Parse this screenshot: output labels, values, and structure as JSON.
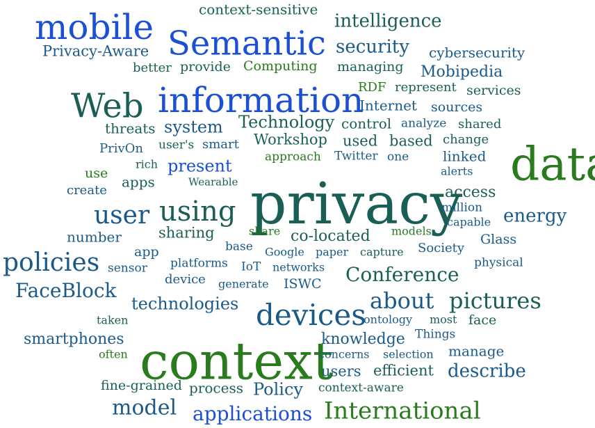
{
  "colors": {
    "blue": "#1a4fd6",
    "navy": "#1a5a8a",
    "teal": "#1a5f55",
    "green": "#2a7a1e"
  },
  "words": [
    {
      "text": "privacy",
      "tone": "teal"
    },
    {
      "text": "context",
      "tone": "green"
    },
    {
      "text": "data",
      "tone": "green"
    },
    {
      "text": "information",
      "tone": "blue"
    },
    {
      "text": "Semantic",
      "tone": "blue"
    },
    {
      "text": "mobile",
      "tone": "blue"
    },
    {
      "text": "Web",
      "tone": "teal"
    },
    {
      "text": "devices",
      "tone": "navy"
    },
    {
      "text": "using",
      "tone": "teal"
    },
    {
      "text": "International",
      "tone": "green"
    },
    {
      "text": "user",
      "tone": "navy"
    },
    {
      "text": "policies",
      "tone": "navy"
    },
    {
      "text": "pictures",
      "tone": "teal"
    },
    {
      "text": "about",
      "tone": "navy"
    },
    {
      "text": "Conference",
      "tone": "teal"
    },
    {
      "text": "FaceBlock",
      "tone": "navy"
    },
    {
      "text": "model",
      "tone": "navy"
    },
    {
      "text": "applications",
      "tone": "blue"
    },
    {
      "text": "intelligence",
      "tone": "teal"
    },
    {
      "text": "security",
      "tone": "navy"
    },
    {
      "text": "describe",
      "tone": "navy"
    },
    {
      "text": "energy",
      "tone": "navy"
    },
    {
      "text": "Policy",
      "tone": "navy"
    },
    {
      "text": "technologies",
      "tone": "navy"
    },
    {
      "text": "present",
      "tone": "blue"
    },
    {
      "text": "system",
      "tone": "navy"
    },
    {
      "text": "Technology",
      "tone": "teal"
    },
    {
      "text": "smartphones",
      "tone": "navy"
    },
    {
      "text": "knowledge",
      "tone": "navy"
    },
    {
      "text": "access",
      "tone": "teal"
    },
    {
      "text": "co-located",
      "tone": "teal"
    },
    {
      "text": "Mobipedia",
      "tone": "navy"
    },
    {
      "text": "Privacy-Aware",
      "tone": "navy"
    },
    {
      "text": "cybersecurity",
      "tone": "navy"
    },
    {
      "text": "context-sensitive",
      "tone": "teal"
    },
    {
      "text": "Workshop",
      "tone": "teal"
    },
    {
      "text": "used",
      "tone": "teal"
    },
    {
      "text": "based",
      "tone": "teal"
    },
    {
      "text": "sharing",
      "tone": "teal"
    },
    {
      "text": "number",
      "tone": "navy"
    },
    {
      "text": "Internet",
      "tone": "navy"
    },
    {
      "text": "control",
      "tone": "teal"
    },
    {
      "text": "users",
      "tone": "navy"
    },
    {
      "text": "efficient",
      "tone": "teal"
    },
    {
      "text": "manage",
      "tone": "navy"
    },
    {
      "text": "process",
      "tone": "teal"
    },
    {
      "text": "fine-grained",
      "tone": "teal"
    },
    {
      "text": "Computing",
      "tone": "green"
    },
    {
      "text": "managing",
      "tone": "teal"
    },
    {
      "text": "provide",
      "tone": "teal"
    },
    {
      "text": "better",
      "tone": "teal"
    },
    {
      "text": "threats",
      "tone": "teal"
    },
    {
      "text": "sources",
      "tone": "navy"
    },
    {
      "text": "services",
      "tone": "teal"
    },
    {
      "text": "RDF",
      "tone": "green"
    },
    {
      "text": "represent",
      "tone": "teal"
    },
    {
      "text": "analyze",
      "tone": "navy"
    },
    {
      "text": "shared",
      "tone": "teal"
    },
    {
      "text": "PrivOn",
      "tone": "navy"
    },
    {
      "text": "user's",
      "tone": "teal"
    },
    {
      "text": "smart",
      "tone": "navy"
    },
    {
      "text": "change",
      "tone": "teal"
    },
    {
      "text": "linked",
      "tone": "navy"
    },
    {
      "text": "approach",
      "tone": "green"
    },
    {
      "text": "Twitter",
      "tone": "navy"
    },
    {
      "text": "one",
      "tone": "navy"
    },
    {
      "text": "alerts",
      "tone": "navy"
    },
    {
      "text": "rich",
      "tone": "teal"
    },
    {
      "text": "use",
      "tone": "green"
    },
    {
      "text": "apps",
      "tone": "teal"
    },
    {
      "text": "Wearable",
      "tone": "teal"
    },
    {
      "text": "create",
      "tone": "navy"
    },
    {
      "text": "million",
      "tone": "navy"
    },
    {
      "text": "capable",
      "tone": "navy"
    },
    {
      "text": "models",
      "tone": "green"
    },
    {
      "text": "share",
      "tone": "green"
    },
    {
      "text": "Glass",
      "tone": "navy"
    },
    {
      "text": "base",
      "tone": "navy"
    },
    {
      "text": "Google",
      "tone": "navy"
    },
    {
      "text": "paper",
      "tone": "navy"
    },
    {
      "text": "capture",
      "tone": "teal"
    },
    {
      "text": "Society",
      "tone": "navy"
    },
    {
      "text": "app",
      "tone": "navy"
    },
    {
      "text": "sensor",
      "tone": "navy"
    },
    {
      "text": "platforms",
      "tone": "navy"
    },
    {
      "text": "IoT",
      "tone": "navy"
    },
    {
      "text": "networks",
      "tone": "navy"
    },
    {
      "text": "physical",
      "tone": "navy"
    },
    {
      "text": "device",
      "tone": "navy"
    },
    {
      "text": "generate",
      "tone": "navy"
    },
    {
      "text": "ISWC",
      "tone": "navy"
    },
    {
      "text": "taken",
      "tone": "teal"
    },
    {
      "text": "ontology",
      "tone": "navy"
    },
    {
      "text": "most",
      "tone": "teal"
    },
    {
      "text": "face",
      "tone": "teal"
    },
    {
      "text": "Things",
      "tone": "navy"
    },
    {
      "text": "often",
      "tone": "green"
    },
    {
      "text": "concerns",
      "tone": "navy"
    },
    {
      "text": "selection",
      "tone": "navy"
    },
    {
      "text": "context-aware",
      "tone": "teal"
    }
  ]
}
